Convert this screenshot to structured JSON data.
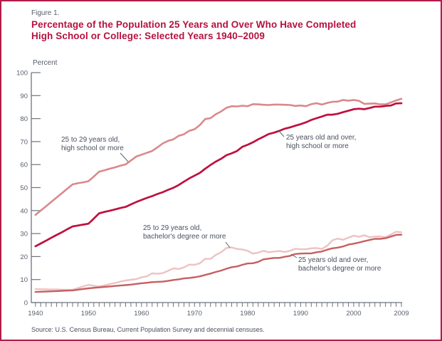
{
  "header": {
    "figure_label": "Figure 1.",
    "title_line1": "Percentage of the Population 25 Years and Over Who Have Completed",
    "title_line2": "High School or College: Selected Years 1940–2009"
  },
  "annotations": {
    "hs_25_29": {
      "line1": "25 to 29 years old,",
      "line2": "high school or more"
    },
    "hs_25_over": {
      "line1": "25 years old and over,",
      "line2": "high school or more"
    },
    "ba_25_29": {
      "line1": "25 to 29 years old,",
      "line2": "bachelor's degree or more"
    },
    "ba_25_over": {
      "line1": "25 years old and over,",
      "line2": "bachelor's degree or more"
    }
  },
  "source": {
    "text": "Source: U.S. Census Bureau, Current Population Survey and decennial censuses."
  },
  "colors": {
    "title_crimson": "#b5123f",
    "frame_border": "#b01c49",
    "axis_gray": "#6d747e",
    "tick_label_gray": "#565e6a",
    "annotation_gray": "#49505e",
    "leader_gray": "#5b6270"
  },
  "chart_data": {
    "type": "line",
    "title": "Percentage of the Population 25 Years and Over Who Have Completed High School or College: Selected Years 1940–2009",
    "xlabel": "",
    "ylabel": "Percent",
    "ylim": [
      0,
      100
    ],
    "ytick_step": 10,
    "grid": false,
    "legend_position": "inline-annotations",
    "x_tick_labels": [
      1940,
      1950,
      1960,
      1970,
      1980,
      1990,
      2000,
      2009
    ],
    "years": [
      1940,
      1941,
      1942,
      1943,
      1944,
      1945,
      1946,
      1947,
      1948,
      1949,
      1950,
      1951,
      1952,
      1953,
      1954,
      1955,
      1956,
      1957,
      1958,
      1959,
      1960,
      1961,
      1962,
      1963,
      1964,
      1965,
      1966,
      1967,
      1968,
      1969,
      1970,
      1971,
      1972,
      1973,
      1974,
      1975,
      1976,
      1977,
      1978,
      1979,
      1980,
      1981,
      1982,
      1983,
      1984,
      1985,
      1986,
      1987,
      1988,
      1989,
      1990,
      1991,
      1992,
      1993,
      1994,
      1995,
      1996,
      1997,
      1998,
      1999,
      2000,
      2001,
      2002,
      2003,
      2004,
      2005,
      2006,
      2007,
      2008,
      2009
    ],
    "series": [
      {
        "key": "ba_25_29",
        "name": "25 to 29 years old, bachelor's degree or more",
        "color": "#eec2c3",
        "values": [
          5.9,
          5.8,
          5.8,
          5.7,
          5.7,
          5.6,
          5.6,
          5.6,
          6.3,
          7.0,
          7.7,
          7.3,
          7.0,
          7.5,
          8.0,
          8.5,
          9.1,
          9.6,
          9.9,
          10.2,
          11.0,
          11.4,
          12.7,
          12.5,
          12.8,
          13.8,
          14.9,
          14.6,
          15.3,
          16.5,
          16.4,
          17.1,
          19.0,
          19.0,
          20.7,
          21.9,
          23.7,
          24.0,
          23.3,
          23.1,
          22.5,
          21.3,
          21.7,
          22.5,
          21.9,
          22.2,
          22.4,
          22.0,
          22.5,
          23.4,
          23.2,
          23.2,
          23.6,
          23.7,
          23.3,
          24.7,
          27.1,
          27.8,
          27.3,
          28.2,
          29.1,
          28.6,
          29.3,
          28.4,
          28.7,
          28.8,
          28.4,
          29.6,
          30.8,
          30.6
        ]
      },
      {
        "key": "hs_25_29",
        "name": "25 to 29 years old, high school or more",
        "color": "#d9898c",
        "values": [
          38.1,
          40.0,
          41.9,
          43.8,
          45.7,
          47.6,
          49.5,
          51.4,
          51.9,
          52.3,
          52.8,
          54.8,
          56.9,
          57.5,
          58.2,
          58.8,
          59.5,
          60.1,
          61.8,
          63.5,
          64.3,
          65.1,
          65.9,
          67.5,
          69.2,
          70.3,
          71.0,
          72.5,
          73.2,
          74.7,
          75.4,
          77.2,
          79.8,
          80.2,
          81.9,
          83.1,
          84.7,
          85.4,
          85.3,
          85.6,
          85.4,
          86.3,
          86.2,
          86.0,
          85.9,
          86.1,
          86.1,
          86.0,
          85.9,
          85.5,
          85.7,
          85.4,
          86.3,
          86.7,
          86.1,
          86.8,
          87.3,
          87.4,
          88.1,
          87.8,
          88.1,
          87.7,
          86.4,
          86.5,
          86.6,
          86.2,
          86.2,
          87.0,
          87.9,
          88.6
        ]
      },
      {
        "key": "ba_25_over",
        "name": "25 years old and over, bachelor's degree or more",
        "color": "#c75f62",
        "values": [
          4.6,
          4.7,
          4.8,
          4.9,
          5.0,
          5.1,
          5.2,
          5.3,
          5.6,
          5.9,
          6.2,
          6.4,
          6.6,
          6.8,
          7.0,
          7.2,
          7.4,
          7.6,
          7.8,
          8.1,
          8.4,
          8.6,
          8.9,
          9.0,
          9.1,
          9.4,
          9.8,
          10.1,
          10.5,
          10.7,
          11.0,
          11.4,
          12.0,
          12.6,
          13.3,
          13.9,
          14.7,
          15.4,
          15.7,
          16.4,
          17.0,
          17.1,
          17.7,
          18.8,
          19.1,
          19.4,
          19.4,
          19.9,
          20.3,
          21.1,
          21.3,
          21.4,
          21.4,
          21.9,
          22.2,
          23.0,
          23.6,
          23.9,
          24.4,
          25.2,
          25.6,
          26.1,
          26.7,
          27.2,
          27.7,
          27.7,
          28.0,
          28.7,
          29.4,
          29.5
        ]
      },
      {
        "key": "hs_25_over",
        "name": "25 years old and over, high school or more",
        "color": "#bf0f3d",
        "values": [
          24.5,
          25.7,
          26.9,
          28.2,
          29.4,
          30.6,
          31.9,
          33.1,
          33.5,
          33.9,
          34.3,
          36.5,
          38.8,
          39.4,
          39.9,
          40.5,
          41.1,
          41.6,
          42.7,
          43.7,
          44.6,
          45.5,
          46.3,
          47.2,
          48.0,
          49.0,
          49.9,
          51.1,
          52.6,
          54.0,
          55.2,
          56.4,
          58.2,
          59.8,
          61.3,
          62.5,
          64.1,
          64.9,
          65.9,
          67.7,
          68.6,
          69.7,
          71.0,
          72.1,
          73.3,
          73.9,
          74.7,
          75.6,
          76.2,
          76.9,
          77.6,
          78.4,
          79.4,
          80.2,
          80.9,
          81.7,
          81.7,
          82.1,
          82.8,
          83.4,
          84.1,
          84.3,
          84.1,
          84.6,
          85.2,
          85.2,
          85.5,
          85.7,
          86.6,
          86.7
        ]
      }
    ]
  }
}
